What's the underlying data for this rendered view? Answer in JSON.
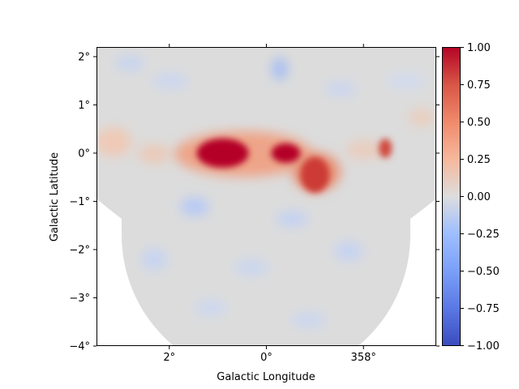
{
  "chart_data": {
    "type": "heatmap",
    "title": "",
    "xlabel": "Galactic Longitude",
    "ylabel": "Galactic Latitude",
    "x_ticks": [
      "2°",
      "0°",
      "358°"
    ],
    "y_ticks": [
      "2°",
      "1°",
      "0°",
      "−1°",
      "−2°",
      "−3°",
      "−4°"
    ],
    "x_tick_values": [
      2,
      0,
      -2
    ],
    "y_tick_values": [
      2,
      1,
      0,
      -1,
      -2,
      -3,
      -4
    ],
    "xlim": [
      3.5,
      -3.5
    ],
    "ylim": [
      -4,
      2.2
    ],
    "colormap": "coolwarm",
    "colorbar": {
      "ticks": [
        "1.00",
        "0.75",
        "0.50",
        "0.25",
        "0.00",
        "−0.25",
        "−0.50",
        "−0.75",
        "−1.00"
      ],
      "tick_values": [
        1.0,
        0.75,
        0.5,
        0.25,
        0.0,
        -0.25,
        -0.5,
        -0.75,
        -1.0
      ],
      "range": [
        -1.0,
        1.0
      ]
    },
    "features": [
      {
        "l": 0.9,
        "b": 0.0,
        "value": 1.0
      },
      {
        "l": -0.4,
        "b": 0.0,
        "value": 1.0
      },
      {
        "l": -1.0,
        "b": -0.45,
        "value": 0.75
      },
      {
        "l": -2.45,
        "b": 0.1,
        "value": 0.7
      }
    ],
    "colors": {
      "low": "#3b4cc0",
      "mid": "#dddddd",
      "high": "#b40426"
    }
  }
}
